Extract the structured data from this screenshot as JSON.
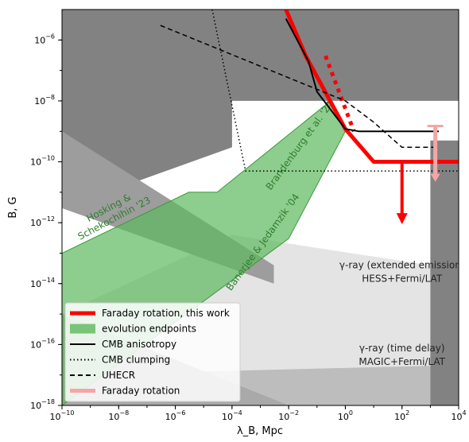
{
  "chart_data": {
    "type": "line",
    "xlabel": "λ_B, Mpc",
    "ylabel": "B, G",
    "x_scale": "log",
    "y_scale": "log",
    "xlim": [
      1e-10,
      10000
    ],
    "ylim": [
      1e-18,
      1e-05
    ],
    "x_ticks": [
      {
        "v": 1e-10,
        "e": "-10"
      },
      {
        "v": 1e-08,
        "e": "-8"
      },
      {
        "v": 1e-06,
        "e": "-6"
      },
      {
        "v": 0.0001,
        "e": "-4"
      },
      {
        "v": 0.01,
        "e": "-2"
      },
      {
        "v": 1,
        "e": "0"
      },
      {
        "v": 100,
        "e": "2"
      },
      {
        "v": 10000,
        "e": "4"
      }
    ],
    "y_ticks": [
      {
        "v": 1e-18,
        "e": "-18"
      },
      {
        "v": 1e-16,
        "e": "-16"
      },
      {
        "v": 1e-14,
        "e": "-14"
      },
      {
        "v": 1e-12,
        "e": "-12"
      },
      {
        "v": 1e-10,
        "e": "-10"
      },
      {
        "v": 1e-08,
        "e": "-8"
      },
      {
        "v": 1e-06,
        "e": "-6"
      }
    ],
    "regions": [
      {
        "name": "gray-upper-left",
        "color": "#828282",
        "x": [
          1e-10,
          1e-10,
          0.0001,
          0.0001,
          10000,
          10000
        ],
        "y": [
          1e-05,
          3e-12,
          3e-10,
          1e-08,
          1e-08,
          1e-05
        ]
      },
      {
        "name": "gray-left-wedge",
        "color": "#9d9d9d",
        "x": [
          1e-10,
          1e-10,
          0.003,
          0.003
        ],
        "y": [
          3e-12,
          1e-09,
          4e-14,
          1e-14
        ]
      },
      {
        "name": "gray-lower-left",
        "color": "#a9a9a9",
        "x": [
          1e-10,
          1e-10,
          0.01,
          0.01
        ],
        "y": [
          1e-18,
          1e-15,
          1e-18,
          1e-18
        ]
      },
      {
        "name": "gray-right-strip",
        "color": "#828282",
        "x": [
          1000,
          1000,
          10000,
          10000
        ],
        "y": [
          1e-18,
          5e-10,
          5e-10,
          1e-18
        ]
      }
    ],
    "gamma_extended": {
      "label_lines": [
        "γ-ray (extended emission)",
        "HESS+Fermi/LAT"
      ],
      "color": "#e4e4e4",
      "x": [
        1e-10,
        1e-10,
        0.0001,
        1000,
        1000
      ],
      "y": [
        1e-18,
        1e-15,
        4e-13,
        4e-14,
        1e-18
      ]
    },
    "gamma_time_delay": {
      "label_lines": [
        "γ-ray (time delay)",
        "MAGIC+Fermi/LAT"
      ],
      "color": "#bdbdbd",
      "x": [
        1e-10,
        1e-10,
        1000,
        1000
      ],
      "y": [
        1e-18,
        1e-17,
        2e-17,
        1e-18
      ]
    },
    "evolution_band": {
      "color": "#5cb85c",
      "opacity": 0.7,
      "x": [
        1e-10,
        1e-10,
        3e-06,
        3e-05,
        0.3,
        1,
        0.01
      ],
      "y": [
        1e-18,
        1e-13,
        1e-11,
        1e-11,
        1e-08,
        1e-09,
        3e-13
      ]
    },
    "series": [
      {
        "name": "Faraday rotation, this work",
        "color": "#ff0000",
        "style": "solid",
        "width": 5,
        "x": [
          0.008,
          0.04,
          1,
          10,
          10000
        ],
        "y": [
          1e-05,
          3e-07,
          1.2e-09,
          1e-10,
          1e-10
        ]
      },
      {
        "name": "",
        "color": "#ff0000",
        "style": "dotted",
        "width": 5,
        "x": [
          0.2,
          2
        ],
        "y": [
          3e-07,
          1e-09
        ]
      },
      {
        "name": "CMB anisotropy",
        "color": "#000000",
        "style": "solid",
        "width": 2,
        "x": [
          0.008,
          0.05,
          0.1,
          1,
          3,
          2000
        ],
        "y": [
          5e-06,
          2e-07,
          2e-08,
          1.2e-09,
          1e-09,
          1e-09
        ]
      },
      {
        "name": "CMB clumping",
        "color": "#000000",
        "style": "dotted",
        "width": 1.5,
        "x": [
          2e-05,
          0.0003,
          10000
        ],
        "y": [
          1e-05,
          5e-11,
          5e-11
        ]
      },
      {
        "name": "UHECR",
        "color": "#000000",
        "style": "dashed",
        "width": 1.5,
        "x": [
          3e-07,
          1,
          10,
          100,
          2000
        ],
        "y": [
          3e-06,
          1e-08,
          2e-09,
          3e-10,
          3e-10
        ]
      }
    ],
    "annotations": [
      {
        "name": "faraday-upper-limit",
        "kind": "arrow",
        "color": "#ff0000",
        "x": 100,
        "y_from": 1e-10,
        "y_to": 1e-12
      },
      {
        "name": "faraday-rotation-errorbar",
        "kind": "errorbar-arrow",
        "color": "#f4a6a6",
        "x": 1500,
        "y_top": 1.5e-09,
        "y_bot": 2.5e-11
      }
    ],
    "band_labels": [
      {
        "lines": [
          "Hosking &",
          "Schekochihin '23"
        ],
        "x": 5e-09,
        "y": 2.5e-12,
        "angle": -28
      },
      {
        "lines": [
          "Brandenburg et al. '24"
        ],
        "x": 0.03,
        "y": 3e-10,
        "angle": -54
      },
      {
        "lines": [
          "Banerjee & Jedamzik '04"
        ],
        "x": 0.0015,
        "y": 2e-13,
        "angle": -54
      }
    ],
    "legend": {
      "placement": "bottom-left",
      "items": [
        {
          "label": "Faraday rotation, this work",
          "kind": "thick-line",
          "color": "#ff0000"
        },
        {
          "label": "evolution endpoints",
          "kind": "patch",
          "color": "#5cb85c"
        },
        {
          "label": "CMB anisotropy",
          "kind": "solid",
          "color": "#000000"
        },
        {
          "label": "CMB clumping",
          "kind": "dotted",
          "color": "#000000"
        },
        {
          "label": "UHECR",
          "kind": "dashed",
          "color": "#000000"
        },
        {
          "label": "Faraday rotation",
          "kind": "thick-line",
          "color": "#f4a6a6"
        }
      ]
    },
    "grid": false
  }
}
